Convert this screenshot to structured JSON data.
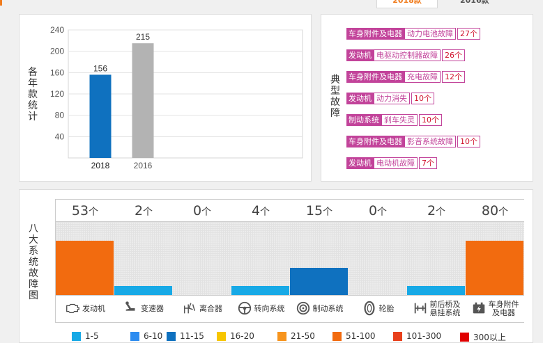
{
  "header": {
    "tabs": [
      {
        "label": "2018款"
      },
      {
        "label": "2016款"
      }
    ]
  },
  "year_panel": {
    "side_label": "各年款统计"
  },
  "chart_data": {
    "type": "bar",
    "categories": [
      "2018",
      "2016"
    ],
    "values": [
      156,
      215
    ],
    "colors": [
      "#0f71bf",
      "#b3b3b3"
    ],
    "yticks": [
      40,
      80,
      120,
      160,
      200,
      240
    ],
    "ylim": [
      0,
      240
    ],
    "grid": true,
    "title": "",
    "xlabel": "",
    "ylabel": "各年款统计"
  },
  "fault_panel": {
    "side_label": "典型故障",
    "accent_color": "#c2439a",
    "faults": [
      {
        "category": "车身附件及电器",
        "name": "动力电池故障",
        "count": "27个"
      },
      {
        "category": "发动机",
        "name": "电驱动控制器故障",
        "count": "26个"
      },
      {
        "category": "车身附件及电器",
        "name": "充电故障",
        "count": "12个"
      },
      {
        "category": "发动机",
        "name": "动力消失",
        "count": "10个"
      },
      {
        "category": "制动系统",
        "name": "刹车失灵",
        "count": "10个"
      },
      {
        "category": "车身附件及电器",
        "name": "影音系统故障",
        "count": "10个"
      },
      {
        "category": "发动机",
        "name": "电动机故障",
        "count": "7个"
      }
    ]
  },
  "systems_panel": {
    "side_label": "八大系统故障图",
    "unit": "个",
    "systems": [
      {
        "count": "53",
        "label": "发动机",
        "icon": "engine-icon",
        "level": 0.74,
        "color": "#f26b0f"
      },
      {
        "count": "2",
        "label": "变速器",
        "icon": "gear-shift-icon",
        "level": 0.12,
        "color": "#17a9e6"
      },
      {
        "count": "0",
        "label": "离合器",
        "icon": "clutch-icon",
        "level": 0,
        "color": "#17a9e6"
      },
      {
        "count": "4",
        "label": "转向系统",
        "icon": "steering-wheel-icon",
        "level": 0.12,
        "color": "#17a9e6"
      },
      {
        "count": "15",
        "label": "制动系统",
        "icon": "brake-disc-icon",
        "level": 0.37,
        "color": "#0f71bf"
      },
      {
        "count": "0",
        "label": "轮胎",
        "icon": "tire-icon",
        "level": 0,
        "color": "#17a9e6"
      },
      {
        "count": "2",
        "label": "前后桥及悬挂系统",
        "label_l1": "前后桥及",
        "label_l2": "悬挂系统",
        "icon": "suspension-icon",
        "level": 0.12,
        "color": "#17a9e6"
      },
      {
        "count": "80",
        "label": "车身附件及电器",
        "label_l1": "车身附件",
        "label_l2": "及电器",
        "icon": "battery-icon",
        "level": 0.74,
        "color": "#f26b0f"
      }
    ]
  },
  "legend": [
    {
      "label": "1-5",
      "color": "#17a9e6"
    },
    {
      "label": "6-10",
      "color": "#2d8cf0"
    },
    {
      "label": "11-15",
      "color": "#0f71bf"
    },
    {
      "label": "16-20",
      "color": "#f7c600"
    },
    {
      "label": "21-50",
      "color": "#f7941d"
    },
    {
      "label": "51-100",
      "color": "#f26b0f"
    },
    {
      "label": "101-300",
      "color": "#e8401c"
    },
    {
      "label": "300以上",
      "color": "#e00000"
    }
  ]
}
